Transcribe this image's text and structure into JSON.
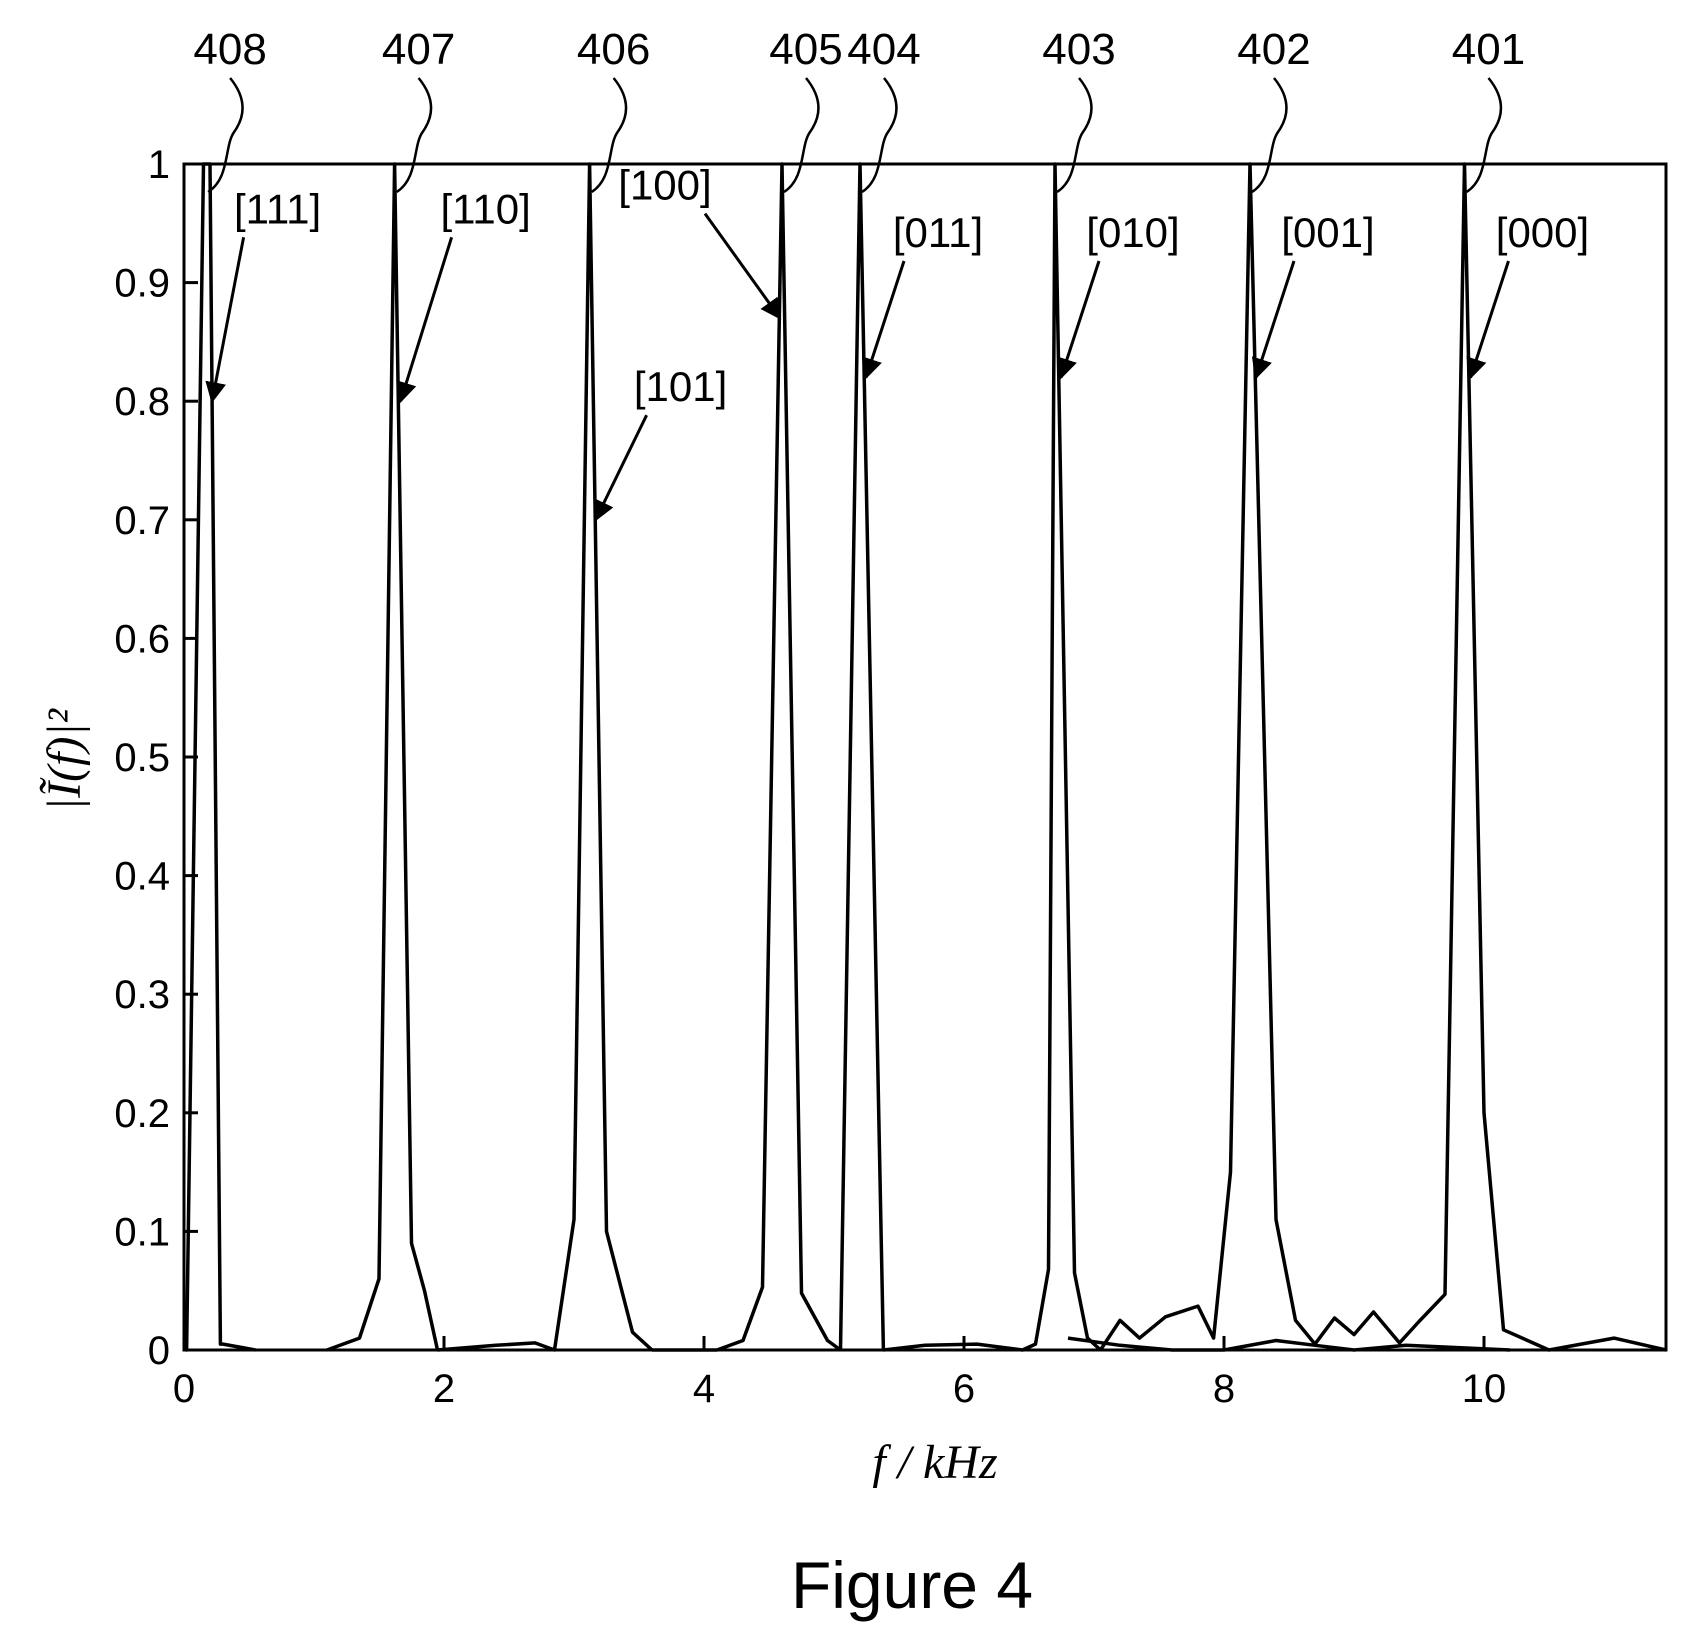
{
  "chart_data": {
    "type": "line",
    "xlabel": "f / kHz",
    "ylabel": "|Ĩ(f)|²",
    "xlim": [
      0,
      11.4
    ],
    "ylim": [
      0,
      1
    ],
    "x_ticks": [
      0,
      2,
      4,
      6,
      8,
      10
    ],
    "y_ticks": [
      0,
      0.1,
      0.2,
      0.3,
      0.4,
      0.5,
      0.6,
      0.7,
      0.8,
      0.9,
      1
    ],
    "grid": false,
    "series": [
      {
        "x": [
          0,
          0.02,
          0.15,
          0.2,
          0.28,
          0.3,
          0.45,
          0.55
        ],
        "y": [
          0.01,
          0.0,
          1.0,
          1.0,
          0.005,
          0.005,
          0.002,
          0.0
        ]
      },
      {
        "x": [
          1.1,
          1.35,
          1.5,
          1.62,
          1.75,
          1.85,
          1.95
        ],
        "y": [
          0.0,
          0.01,
          0.06,
          1.0,
          0.09,
          0.05,
          0.0
        ]
      },
      {
        "x": [
          1.95,
          2.4,
          2.7,
          2.85,
          3.0,
          3.12,
          3.25,
          3.45,
          3.6
        ],
        "y": [
          0.0,
          0.004,
          0.006,
          0.0,
          0.11,
          1.0,
          0.1,
          0.015,
          0.0
        ]
      },
      {
        "x": [
          3.6,
          4.1,
          4.3,
          4.45,
          4.6,
          4.75,
          4.95,
          5.05
        ],
        "y": [
          0.0,
          0.0,
          0.008,
          0.053,
          1.0,
          0.048,
          0.008,
          0.0
        ]
      },
      {
        "x": [
          5.05,
          5.2,
          5.38
        ],
        "y": [
          0.0,
          1.0,
          0.0
        ]
      },
      {
        "x": [
          5.38,
          5.7,
          6.1,
          6.45,
          6.55,
          6.65,
          6.7,
          6.85,
          6.95,
          7.05
        ],
        "y": [
          0.0,
          0.004,
          0.005,
          0.0,
          0.005,
          0.068,
          1.0,
          0.065,
          0.01,
          0.0
        ]
      },
      {
        "x": [
          7.05,
          7.2,
          7.35,
          7.55,
          7.8,
          7.92,
          8.05,
          8.2,
          8.4,
          8.55,
          8.7,
          8.85,
          9.0,
          9.15,
          9.35,
          9.5,
          9.7,
          9.85,
          10.0,
          10.15,
          10.5,
          11.0,
          11.4
        ],
        "y": [
          0.0,
          0.025,
          0.01,
          0.028,
          0.037,
          0.01,
          0.15,
          1.0,
          0.11,
          0.025,
          0.005,
          0.027,
          0.013,
          0.032,
          0.006,
          0.024,
          0.047,
          1.0,
          0.2,
          0.017,
          0.0,
          0.01,
          0.0
        ]
      },
      {
        "x": [
          6.8,
          7.2,
          7.6,
          8.0,
          8.4,
          8.7,
          9.0,
          9.4,
          9.8,
          10.2
        ],
        "y": [
          0.01,
          0.004,
          0.0,
          0.0,
          0.008,
          0.004,
          0.0,
          0.004,
          0.002,
          0.0
        ]
      }
    ],
    "annotations": [
      {
        "ref": "408",
        "code": "[111]",
        "x": 0.17
      },
      {
        "ref": "407",
        "code": "[110]",
        "x": 1.62
      },
      {
        "ref": "406",
        "code": "[101]",
        "x": 3.12
      },
      {
        "ref": "405",
        "code": "[100]",
        "x": 4.6
      },
      {
        "ref": "404",
        "code": "[011]",
        "x": 5.2
      },
      {
        "ref": "403",
        "code": "[010]",
        "x": 6.7
      },
      {
        "ref": "402",
        "code": "[001]",
        "x": 8.2
      },
      {
        "ref": "401",
        "code": "[000]",
        "x": 9.85
      }
    ]
  },
  "caption": "Figure 4"
}
